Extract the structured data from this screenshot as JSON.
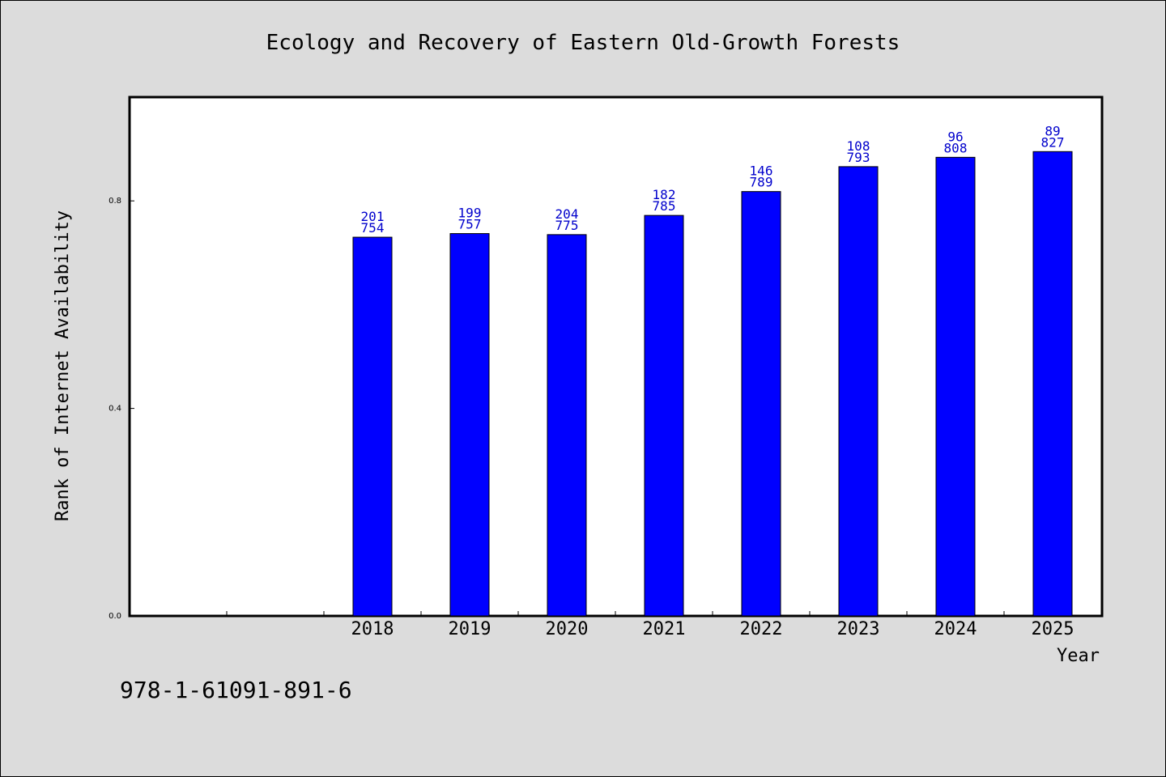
{
  "chart_data": {
    "type": "bar",
    "title": "Ecology and Recovery of Eastern Old-Growth Forests",
    "xlabel": "Year",
    "ylabel": "Rank of Internet Availability",
    "categories": [
      "",
      "",
      "2018",
      "2019",
      "2020",
      "2021",
      "2022",
      "2023",
      "2024",
      "2025"
    ],
    "values": [
      null,
      null,
      0.73,
      0.737,
      0.735,
      0.772,
      0.818,
      0.866,
      0.884,
      0.895
    ],
    "labels_top": [
      "",
      "",
      "201",
      "199",
      "204",
      "182",
      "146",
      "108",
      "96",
      "89"
    ],
    "labels_bottom": [
      "",
      "",
      "754",
      "757",
      "775",
      "785",
      "789",
      "793",
      "808",
      "827"
    ],
    "yticks": [
      0.0,
      0.4,
      0.8
    ],
    "ytick_labels": [
      "0.0",
      "0.4",
      "0.8"
    ],
    "ylim": [
      0,
      1.0
    ],
    "grid": false,
    "colors": {
      "bar_fill": "#0000ff",
      "bar_stroke": "#000000",
      "label_color": "#0000cc",
      "plot_bg": "#ffffff",
      "page_bg": "#dcdcdc"
    }
  },
  "footer": {
    "isbn": "978-1-61091-891-6"
  }
}
